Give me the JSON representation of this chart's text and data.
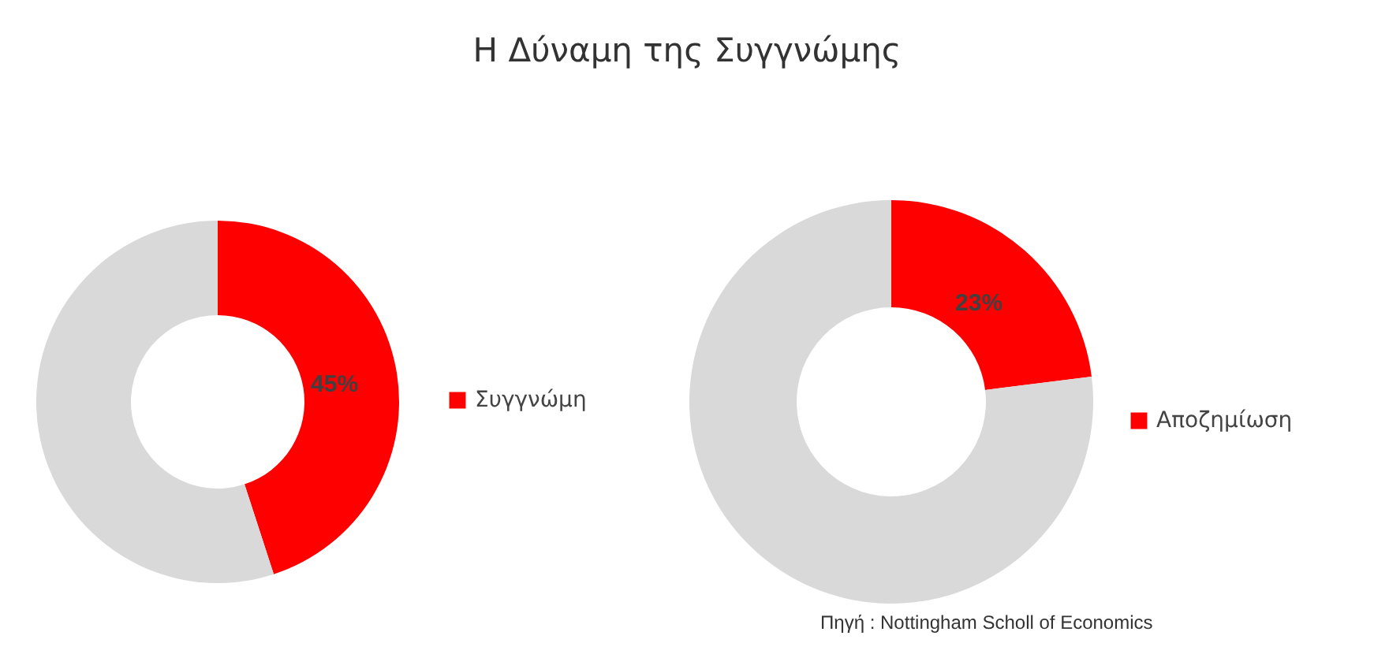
{
  "chart_data": [
    {
      "type": "donut",
      "title": "Η Δύναμη της Συγγνώμης",
      "categories": [
        "Συγγνώμη",
        null
      ],
      "values": [
        45,
        55
      ],
      "colors": [
        "#ff0000",
        "#d9d9d9"
      ],
      "value_labels": [
        "45%",
        null
      ],
      "legend": "right"
    },
    {
      "type": "donut",
      "categories": [
        "Αποζημίωση",
        null
      ],
      "values": [
        23,
        77
      ],
      "colors": [
        "#ff0000",
        "#d9d9d9"
      ],
      "value_labels": [
        "23%",
        null
      ],
      "legend": "right",
      "annotations": [
        "Πηγή : Nottingham Scholl of Economics"
      ]
    }
  ]
}
